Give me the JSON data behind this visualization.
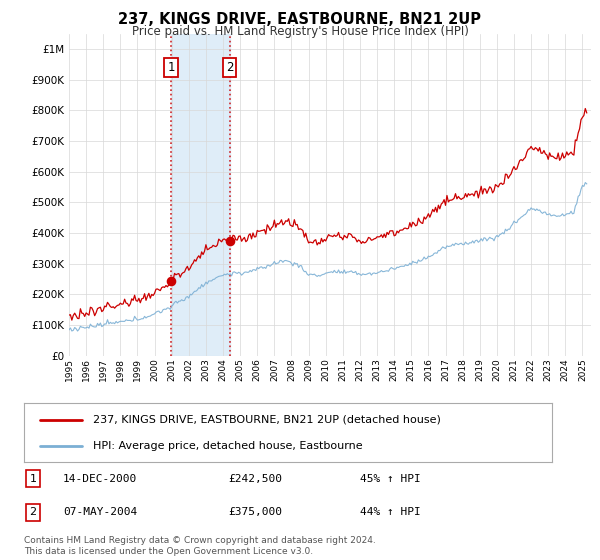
{
  "title": "237, KINGS DRIVE, EASTBOURNE, BN21 2UP",
  "subtitle": "Price paid vs. HM Land Registry's House Price Index (HPI)",
  "legend_entry1": "237, KINGS DRIVE, EASTBOURNE, BN21 2UP (detached house)",
  "legend_entry2": "HPI: Average price, detached house, Eastbourne",
  "annotation1_label": "1",
  "annotation1_date": "14-DEC-2000",
  "annotation1_price": "£242,500",
  "annotation1_hpi": "45% ↑ HPI",
  "annotation2_label": "2",
  "annotation2_date": "07-MAY-2004",
  "annotation2_price": "£375,000",
  "annotation2_hpi": "44% ↑ HPI",
  "footnote": "Contains HM Land Registry data © Crown copyright and database right 2024.\nThis data is licensed under the Open Government Licence v3.0.",
  "sale1_year": 2000.96,
  "sale1_price": 242500,
  "sale2_year": 2004.38,
  "sale2_price": 375000,
  "hpi_color": "#7bafd4",
  "price_color": "#cc0000",
  "shaded_color": "#daeaf7",
  "vline_color": "#cc0000",
  "ylim_min": 0,
  "ylim_max": 1050000,
  "xlim_min": 1995.0,
  "xlim_max": 2025.5
}
